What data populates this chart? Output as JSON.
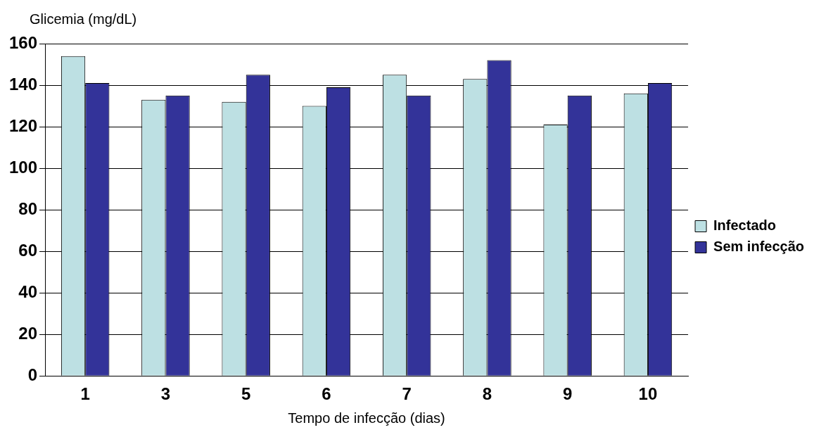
{
  "chart_data": {
    "type": "bar",
    "ylabel": "Glicemia (mg/dL)",
    "xlabel": "Tempo de infecção (dias)",
    "categories": [
      "1",
      "3",
      "5",
      "6",
      "7",
      "8",
      "9",
      "10"
    ],
    "series": [
      {
        "name": "Infectado",
        "color": "#bde0e3",
        "values": [
          154,
          133,
          132,
          130,
          145,
          143,
          121,
          136
        ]
      },
      {
        "name": "Sem infecção",
        "color": "#333399",
        "values": [
          141,
          135,
          145,
          139,
          135,
          152,
          135,
          141
        ]
      }
    ],
    "ylim": [
      0,
      160
    ],
    "yticks": [
      0,
      20,
      40,
      60,
      80,
      100,
      120,
      140,
      160
    ],
    "grid": "y",
    "legend": "right"
  }
}
